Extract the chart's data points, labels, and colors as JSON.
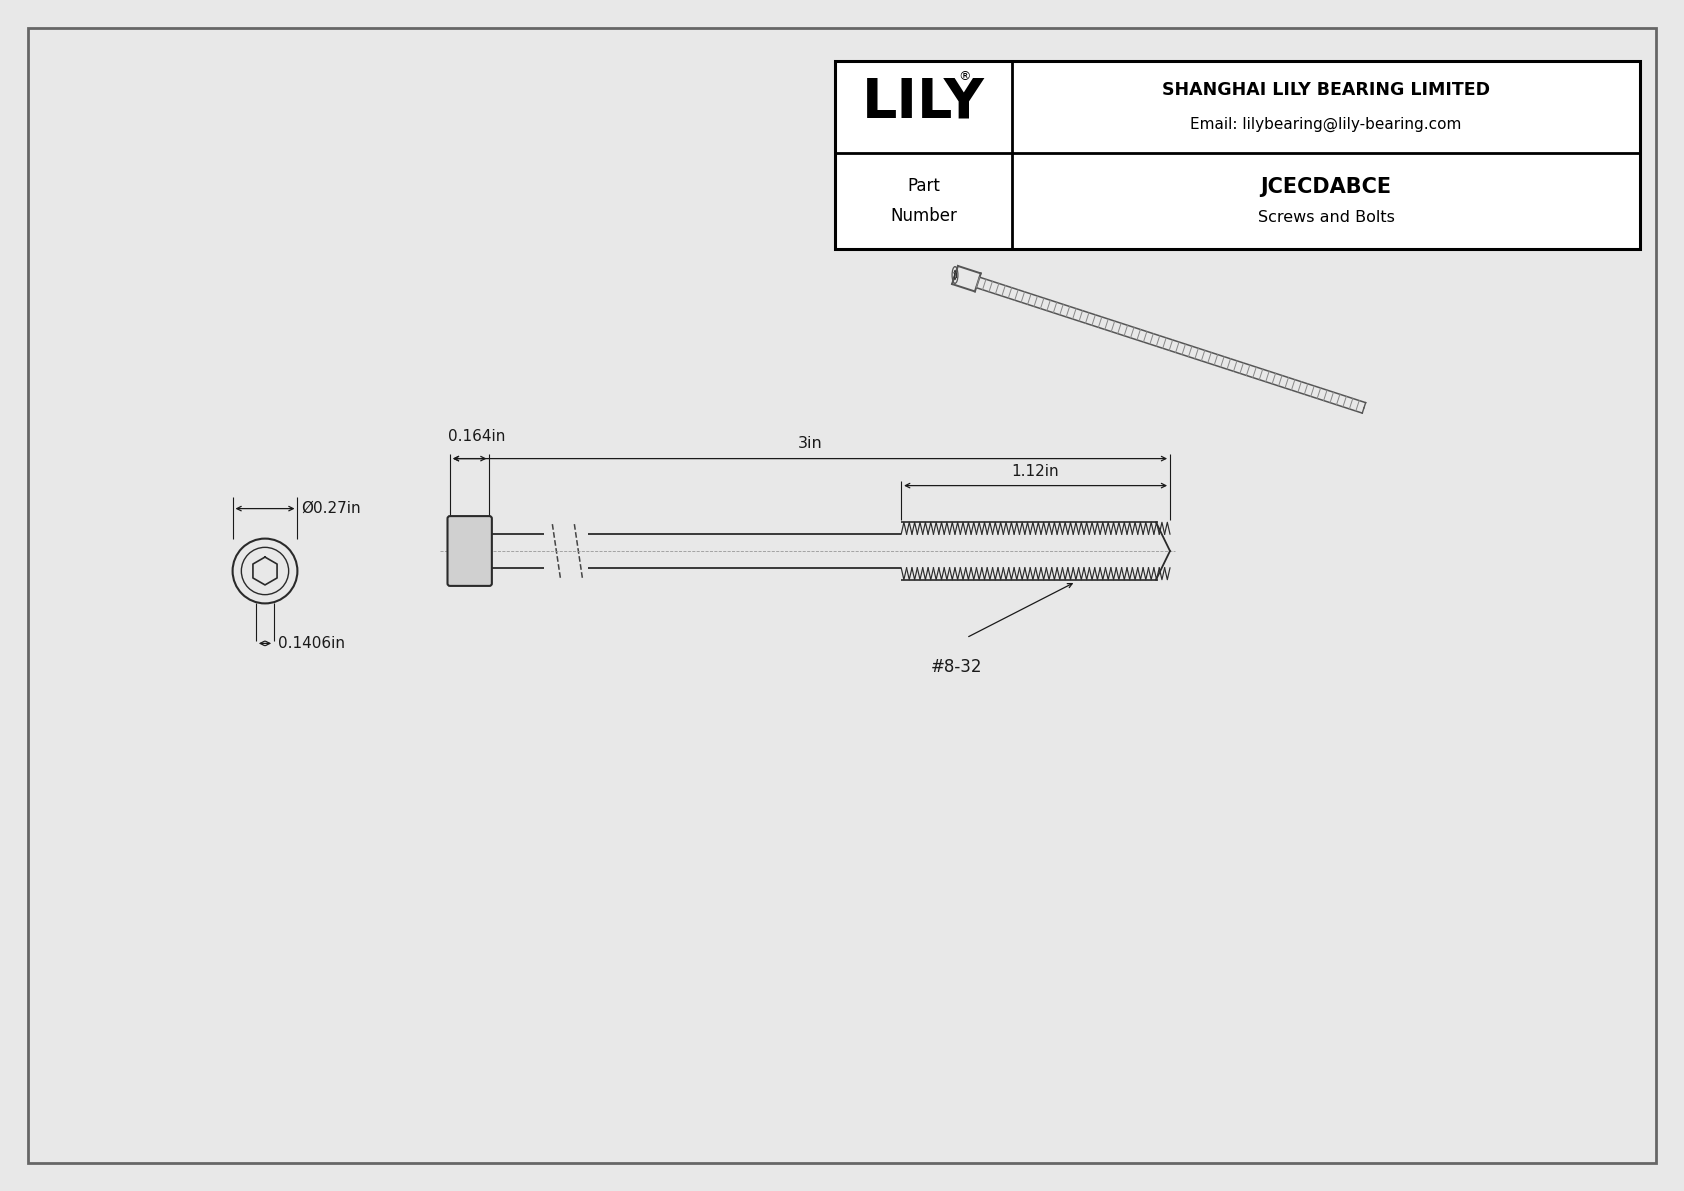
{
  "bg_color": "#e8e8e8",
  "line_color": "#2a2a2a",
  "dim_color": "#1a1a1a",
  "white": "#ffffff",
  "company_name": "SHANGHAI LILY BEARING LIMITED",
  "company_email": "Email: lilybearing@lily-bearing.com",
  "part_number": "JCECDABCE",
  "part_category": "Screws and Bolts",
  "logo_text": "LILY",
  "logo_reg": "®",
  "dim_head_width": "0.27in",
  "dim_head_length": "0.164in",
  "dim_total_length": "3in",
  "dim_thread_length": "1.12in",
  "dim_shank_diameter": "0.1406in",
  "thread_label": "#8-32",
  "diam_symbol": "Ø"
}
